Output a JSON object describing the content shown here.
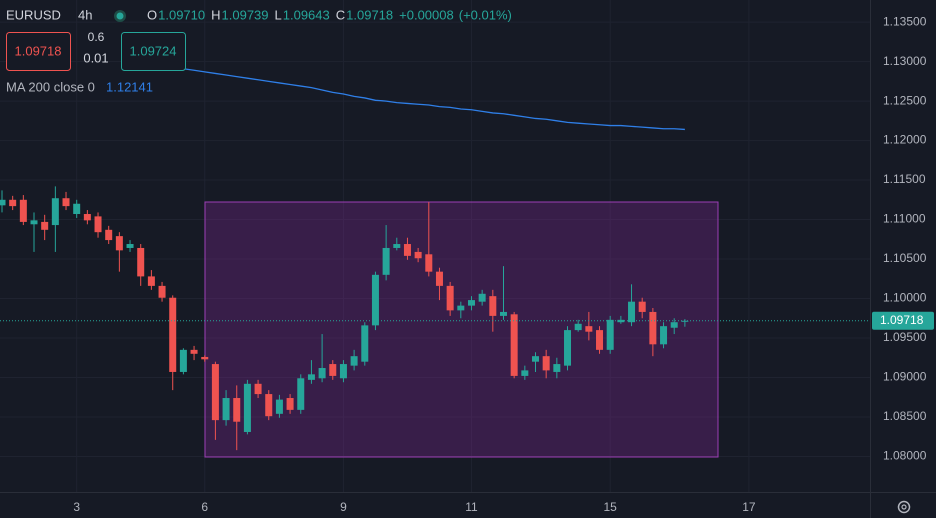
{
  "header": {
    "symbol": "EURUSD",
    "interval": "4h",
    "ohlc": [
      {
        "key": "O",
        "label": "1.09710"
      },
      {
        "key": "H",
        "label": "1.09739"
      },
      {
        "key": "L",
        "label": "1.09643"
      },
      {
        "key": "C",
        "label": "1.09718"
      }
    ],
    "change": "+0.00008",
    "change_pct": "(+0.01%)"
  },
  "trade": {
    "sell": "1.09718",
    "spread": "0.6",
    "quantity": "0.01",
    "buy": "1.09724"
  },
  "chart_data": {
    "type": "candlestick",
    "categories": [
      null,
      null,
      null,
      null,
      null,
      null,
      null,
      "3",
      null,
      null,
      null,
      null,
      null,
      null,
      null,
      null,
      null,
      null,
      null,
      "6",
      null,
      null,
      null,
      null,
      null,
      null,
      null,
      null,
      null,
      null,
      null,
      null,
      "9",
      null,
      null,
      null,
      null,
      null,
      null,
      null,
      null,
      null,
      null,
      null,
      "11",
      null,
      null,
      null,
      null,
      null,
      null,
      null,
      null,
      null,
      null,
      null,
      null,
      "15",
      null,
      null,
      null,
      null,
      null,
      null,
      null,
      null,
      null,
      null,
      null,
      null,
      "17"
    ],
    "open": [
      1.1118,
      1.1125,
      1.1125,
      1.1094,
      1.1097,
      1.1093,
      1.1127,
      1.1107,
      1.1107,
      1.1104,
      1.1087,
      1.1079,
      1.1064,
      1.1064,
      1.1028,
      1.1016,
      1.1001,
      1.0907,
      1.0935,
      1.0926,
      1.0917,
      1.0846,
      1.0874,
      1.0831,
      1.0892,
      1.0879,
      1.0854,
      1.0874,
      1.0859,
      1.0897,
      1.0899,
      1.0917,
      1.0899,
      1.0915,
      1.092,
      1.0966,
      1.103,
      1.1064,
      1.1069,
      1.1059,
      1.1056,
      1.1034,
      1.1016,
      1.0985,
      1.0991,
      1.0996,
      1.1003,
      1.0978,
      1.098,
      1.0902,
      1.092,
      1.0927,
      1.0907,
      1.0915,
      1.096,
      1.0965,
      1.096,
      1.0935,
      1.097,
      1.097,
      1.0996,
      1.0983,
      1.0942,
      1.0963,
      1.0971,
      null,
      null,
      null,
      null,
      null,
      null
    ],
    "high": [
      1.1137,
      1.113,
      1.1131,
      1.1109,
      1.1106,
      1.1142,
      1.1135,
      1.1125,
      1.1112,
      1.1109,
      1.1092,
      1.1084,
      1.1074,
      1.1069,
      1.1036,
      1.1021,
      1.1004,
      1.0937,
      1.094,
      1.0928,
      1.092,
      1.0884,
      1.089,
      1.0897,
      1.0897,
      1.0884,
      1.0878,
      1.0879,
      1.0904,
      1.0922,
      1.0955,
      1.0922,
      1.0922,
      1.0935,
      1.097,
      1.1034,
      1.1093,
      1.1077,
      1.1077,
      1.1064,
      1.1122,
      1.1039,
      1.1021,
      1.0996,
      1.1003,
      1.1011,
      1.1011,
      1.1041,
      1.0983,
      1.0915,
      1.0932,
      1.0935,
      1.0925,
      1.0965,
      1.0973,
      1.0983,
      1.0965,
      1.0978,
      1.0978,
      1.1018,
      1.1001,
      1.0988,
      1.097,
      1.0975,
      1.09739,
      null,
      null,
      null,
      null,
      null,
      null
    ],
    "low": [
      1.1109,
      1.1112,
      1.1093,
      1.1059,
      1.1074,
      1.1059,
      1.1112,
      1.1102,
      1.1094,
      1.1077,
      1.1069,
      1.1034,
      1.1059,
      1.1016,
      1.1011,
      1.0996,
      1.0884,
      1.0904,
      1.0922,
      1.092,
      1.0821,
      1.0839,
      1.0808,
      1.0828,
      1.0874,
      1.0846,
      1.0849,
      1.0854,
      1.0854,
      1.0892,
      1.0894,
      1.0897,
      1.0894,
      1.0909,
      1.0915,
      1.096,
      1.1023,
      1.1061,
      1.1049,
      1.1046,
      1.1028,
      1.0998,
      1.0978,
      1.0975,
      1.0985,
      1.0991,
      1.0958,
      1.0973,
      1.0899,
      1.0897,
      1.0907,
      1.0899,
      1.0899,
      1.0909,
      1.0958,
      1.0947,
      1.093,
      1.093,
      1.0968,
      1.0965,
      1.0975,
      1.0927,
      1.0937,
      1.0955,
      1.09643,
      null,
      null,
      null,
      null,
      null,
      null
    ],
    "close": [
      1.1125,
      1.1117,
      1.1097,
      1.1099,
      1.1087,
      1.1127,
      1.1117,
      1.112,
      1.1099,
      1.1084,
      1.1074,
      1.1061,
      1.1069,
      1.1028,
      1.1016,
      1.1001,
      1.0907,
      1.0935,
      1.093,
      1.0923,
      1.0846,
      1.0874,
      1.0844,
      1.0892,
      1.0879,
      1.0851,
      1.0872,
      1.0859,
      1.0899,
      1.0904,
      1.0912,
      1.0902,
      1.0917,
      1.0927,
      1.0966,
      1.103,
      1.1064,
      1.1069,
      1.1054,
      1.1051,
      1.1034,
      1.1016,
      1.0985,
      1.0991,
      1.0998,
      1.1006,
      1.0978,
      1.0983,
      1.0902,
      1.0909,
      1.0927,
      1.0909,
      1.0917,
      1.096,
      1.0968,
      1.0958,
      1.0935,
      1.0973,
      1.0973,
      1.0996,
      1.0983,
      1.0942,
      1.0965,
      1.097,
      1.09718,
      null,
      null,
      null,
      null,
      null,
      null
    ],
    "up_color": "#26a69a",
    "down_color": "#ef5350",
    "ma": {
      "name": "MA 200 close 0",
      "color": "#2f7fe8",
      "values": [
        null,
        null,
        null,
        null,
        null,
        null,
        null,
        null,
        null,
        null,
        null,
        null,
        null,
        null,
        null,
        null,
        null,
        1.1291,
        1.1289,
        1.1287,
        1.1285,
        1.1283,
        1.1281,
        1.1279,
        1.1277,
        1.1275,
        1.1273,
        1.1271,
        1.1269,
        1.1267,
        1.1264,
        1.1261,
        1.1259,
        1.1256,
        1.1254,
        1.1251,
        1.125,
        1.1248,
        1.1247,
        1.1246,
        1.1245,
        1.1243,
        1.1242,
        1.124,
        1.1239,
        1.1237,
        1.1235,
        1.1234,
        1.1232,
        1.123,
        1.1228,
        1.1227,
        1.1225,
        1.1223,
        1.1222,
        1.1221,
        1.122,
        1.1219,
        1.1219,
        1.1218,
        1.1217,
        1.1216,
        1.1215,
        1.1215,
        1.12141,
        null,
        null,
        null,
        null,
        null,
        null
      ]
    },
    "ylim": [
      1.0755,
      1.1378
    ],
    "yticks": [
      {
        "value": 1.135,
        "label": "1.13500"
      },
      {
        "value": 1.13,
        "label": "1.13000"
      },
      {
        "value": 1.125,
        "label": "1.12500"
      },
      {
        "value": 1.12,
        "label": "1.12000"
      },
      {
        "value": 1.115,
        "label": "1.11500"
      },
      {
        "value": 1.11,
        "label": "1.11000"
      },
      {
        "value": 1.105,
        "label": "1.10500"
      },
      {
        "value": 1.1,
        "label": "1.10000"
      },
      {
        "value": 1.095,
        "label": "1.09500"
      },
      {
        "value": 1.09,
        "label": "1.09000"
      },
      {
        "value": 1.085,
        "label": "1.08500"
      },
      {
        "value": 1.08,
        "label": "1.08000"
      }
    ],
    "grid": true
  }
}
